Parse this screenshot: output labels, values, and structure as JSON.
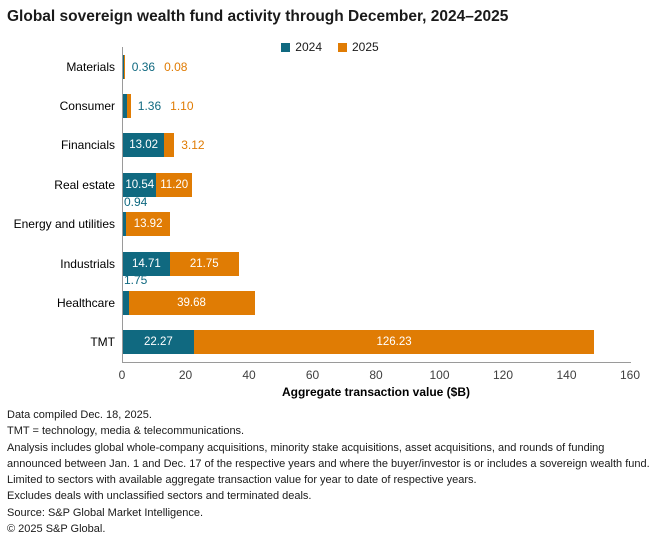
{
  "title": "Global sovereign wealth fund activity through December, 2024–2025",
  "chart_data": {
    "type": "bar",
    "orientation": "horizontal",
    "stacked": true,
    "title": "Global sovereign wealth fund activity through December, 2024–2025",
    "categories": [
      "Materials",
      "Consumer",
      "Financials",
      "Real estate",
      "Energy and utilities",
      "Industrials",
      "Healthcare",
      "TMT"
    ],
    "series": [
      {
        "name": "2024",
        "color": "#106980",
        "values": [
          0.36,
          1.36,
          13.02,
          10.54,
          0.94,
          14.71,
          1.75,
          22.27
        ]
      },
      {
        "name": "2025",
        "color": "#E07C04",
        "values": [
          0.08,
          1.1,
          3.12,
          11.2,
          13.92,
          21.75,
          39.68,
          126.23
        ]
      }
    ],
    "xlabel": "Aggregate transaction value ($B)",
    "ylabel": "",
    "xlim": [
      0,
      160
    ],
    "xticks": [
      0,
      20,
      40,
      60,
      80,
      100,
      120,
      140,
      160
    ],
    "grid": false,
    "legend_position": "top-center",
    "value_label_format": "0.00"
  },
  "colors": {
    "teal": "#106980",
    "orange": "#E07C04",
    "axis": "#9a9a9a",
    "text": "#1a1a1a"
  },
  "footnotes": [
    "Data compiled Dec. 18, 2025.",
    "TMT = technology, media & telecommunications.",
    "Analysis includes global whole-company acquisitions, minority stake acquisitions, asset acquisitions, and rounds of funding announced between Jan. 1 and Dec. 17 of the respective years and where the buyer/investor is or includes a sovereign wealth fund.",
    "Limited to sectors with available aggregate transaction value for year to date of respective years.",
    "Excludes deals with unclassified sectors and terminated deals.",
    "Source: S&P Global Market Intelligence.",
    "© 2025 S&P Global."
  ]
}
